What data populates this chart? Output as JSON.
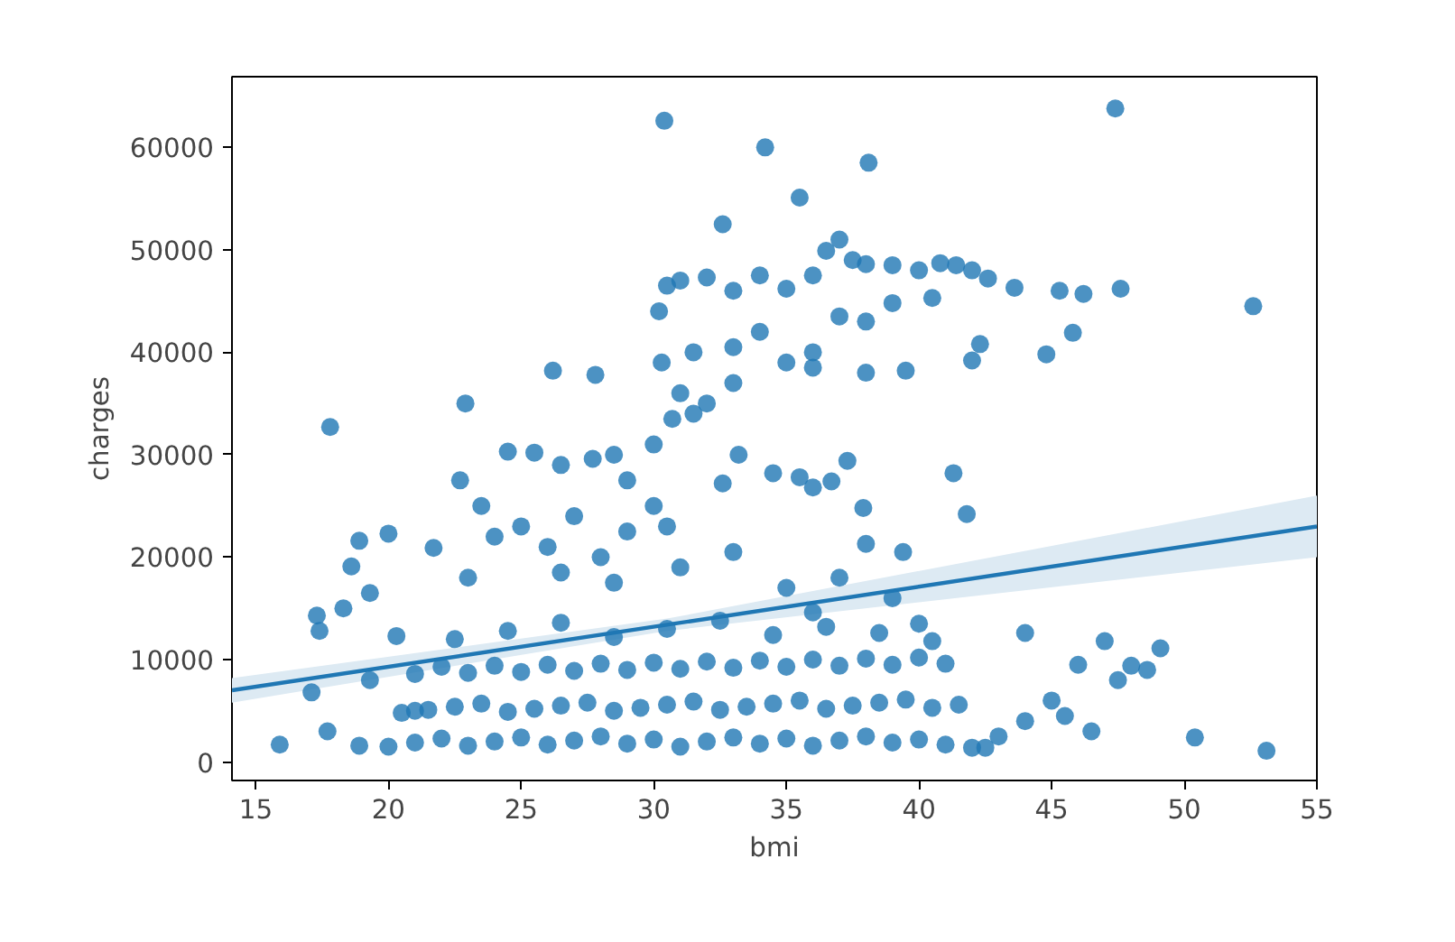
{
  "chart_data": {
    "type": "scatter",
    "xlabel": "bmi",
    "ylabel": "charges",
    "xlim": [
      14.1,
      55
    ],
    "ylim": [
      -1800,
      66900
    ],
    "xticks": [
      15,
      20,
      25,
      30,
      35,
      40,
      45,
      50,
      55
    ],
    "yticks": [
      0,
      10000,
      20000,
      30000,
      40000,
      50000,
      60000
    ],
    "grid": false,
    "marker": "circle",
    "series": [
      {
        "color": "#1f77b4",
        "x": [
          15.9,
          17.8,
          22.9,
          26.2,
          27.8,
          30.4,
          34.2,
          35.5,
          38.1,
          32.6,
          47.4,
          52.6,
          53.1,
          50.4,
          49.1,
          17.3,
          17.4,
          18.3,
          18.9,
          20.0,
          20.3,
          18.6,
          19.3,
          21.7,
          17.1,
          17.7,
          18.9,
          30.2,
          30.5,
          31.0,
          32.0,
          33.0,
          34.0,
          35.0,
          36.0,
          36.5,
          37.0,
          37.5,
          38.0,
          39.0,
          40.0,
          40.8,
          41.4,
          42.0,
          42.6,
          43.6,
          45.3,
          47.6,
          46.2,
          45.8,
          44.8,
          42.0,
          42.3,
          40.5,
          39.0,
          38.0,
          37.0,
          36.0,
          35.0,
          34.0,
          33.0,
          31.5,
          30.3,
          31.0,
          32.0,
          33.0,
          36.0,
          38.0,
          39.5,
          30.7,
          30.0,
          31.5,
          33.2,
          32.6,
          34.5,
          35.5,
          36.0,
          36.7,
          37.3,
          37.9,
          41.3,
          41.8,
          39.4,
          38.0,
          22.7,
          23.5,
          24.5,
          25.5,
          26.5,
          27.7,
          28.5,
          29.0,
          30.0,
          24.0,
          25.0,
          26.0,
          27.0,
          28.0,
          29.0,
          30.5,
          23.0,
          26.5,
          28.5,
          31.0,
          33.0,
          35.0,
          37.0,
          39.0,
          36.0,
          40.0,
          20.0,
          21.0,
          22.0,
          23.0,
          24.0,
          25.0,
          26.0,
          27.0,
          28.0,
          29.0,
          30.0,
          31.0,
          32.0,
          33.0,
          34.0,
          35.0,
          36.0,
          37.0,
          38.0,
          39.0,
          40.0,
          41.0,
          42.0,
          20.5,
          21.5,
          22.5,
          23.5,
          24.5,
          25.5,
          26.5,
          27.5,
          28.5,
          29.5,
          30.5,
          31.5,
          32.5,
          33.5,
          34.5,
          35.5,
          36.5,
          37.5,
          38.5,
          39.5,
          40.5,
          41.5,
          21.0,
          22.0,
          23.0,
          24.0,
          25.0,
          26.0,
          27.0,
          28.0,
          29.0,
          30.0,
          31.0,
          32.0,
          33.0,
          34.0,
          35.0,
          36.0,
          37.0,
          38.0,
          39.0,
          40.0,
          41.0,
          22.5,
          24.5,
          26.5,
          28.5,
          30.5,
          32.5,
          34.5,
          36.5,
          38.5,
          40.5,
          43.0,
          44.0,
          45.0,
          46.0,
          47.0,
          47.5,
          48.0,
          46.5,
          45.5,
          44.0,
          42.5,
          48.6,
          19.3,
          21.0
        ],
        "values": [
          1700,
          32700,
          35000,
          38200,
          37800,
          62600,
          60000,
          55100,
          58500,
          52500,
          63800,
          44500,
          1100,
          2400,
          11100,
          14300,
          12800,
          15000,
          21600,
          22300,
          12300,
          19100,
          16500,
          20900,
          6800,
          3000,
          1600,
          44000,
          46500,
          47000,
          47300,
          46000,
          47500,
          46200,
          47500,
          49900,
          51000,
          49000,
          48600,
          48500,
          48000,
          48700,
          48500,
          48000,
          47200,
          46300,
          46000,
          46200,
          45700,
          41900,
          39800,
          39200,
          40800,
          45300,
          44800,
          43000,
          43500,
          40000,
          39000,
          42000,
          40500,
          40000,
          39000,
          36000,
          35000,
          37000,
          38500,
          38000,
          38200,
          33500,
          31000,
          34000,
          30000,
          27200,
          28200,
          27800,
          26800,
          27400,
          29400,
          24800,
          28200,
          24200,
          20500,
          21300,
          27500,
          25000,
          30300,
          30200,
          29000,
          29600,
          30000,
          27500,
          25000,
          22000,
          23000,
          21000,
          24000,
          20000,
          22500,
          23000,
          18000,
          18500,
          17500,
          19000,
          20500,
          17000,
          18000,
          16000,
          14600,
          13500,
          1500,
          1900,
          2300,
          1600,
          2000,
          2400,
          1700,
          2100,
          2500,
          1800,
          2200,
          1500,
          2000,
          2400,
          1800,
          2300,
          1600,
          2100,
          2500,
          1900,
          2200,
          1700,
          1400,
          4800,
          5100,
          5400,
          5700,
          4900,
          5200,
          5500,
          5800,
          5000,
          5300,
          5600,
          5900,
          5100,
          5400,
          5700,
          6000,
          5200,
          5500,
          5800,
          6100,
          5300,
          5600,
          8600,
          9300,
          8700,
          9400,
          8800,
          9500,
          8900,
          9600,
          9000,
          9700,
          9100,
          9800,
          9200,
          9900,
          9300,
          10000,
          9400,
          10100,
          9500,
          10200,
          9600,
          12000,
          12800,
          13600,
          12200,
          13000,
          13800,
          12400,
          13200,
          12600,
          11800,
          2500,
          4000,
          6000,
          9500,
          11800,
          8000,
          9400,
          3000,
          4500,
          12600,
          1400,
          9000,
          8000,
          5000
        ]
      },
      {
        "type": "line",
        "marker": "none",
        "color": "#1f77b4",
        "x": [
          14.1,
          30.5,
          55
        ],
        "values": [
          7000,
          13400,
          23000
        ],
        "lower": [
          5800,
          12800,
          20000
        ],
        "upper": [
          8200,
          14000,
          26000
        ]
      }
    ]
  }
}
